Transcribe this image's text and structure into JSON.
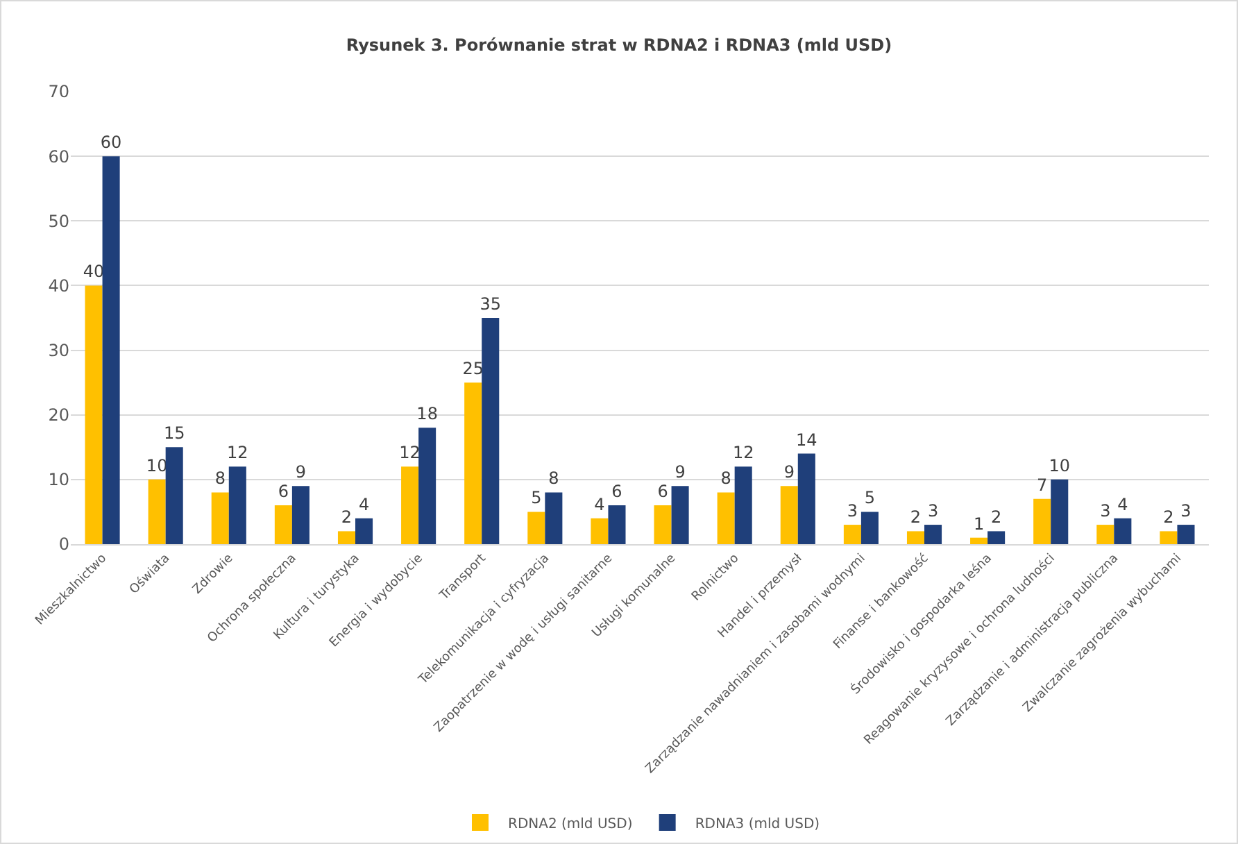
{
  "chart_data": {
    "type": "bar",
    "title": "Rysunek 3. Porównanie strat w RDNA2 i RDNA3 (mld USD)",
    "categories": [
      "Mieszkalnictwo",
      "Oświata",
      "Zdrowie",
      "Ochrona społeczna",
      "Kultura i turystyka",
      "Energia i wydobycie",
      "Transport",
      "Telekomunikacja i cyfryzacja",
      "Zaopatrzenie w wodę i usługi sanitarne",
      "Usługi komunalne",
      "Rolnictwo",
      "Handel i przemysł",
      "Zarządzanie nawadnianiem i zasobami wodnymi",
      "Finanse i bankowość",
      "Środowisko i gospodarka leśna",
      "Reagowanie kryzysowe i ochrona ludności",
      "Zarządzanie i administracja publiczna",
      "Zwalczanie zagrożenia wybuchami"
    ],
    "series": [
      {
        "name": "RDNA2 (mld USD)",
        "color": "#ffc000",
        "values": [
          40,
          10,
          8,
          6,
          2,
          12,
          25,
          5,
          4,
          6,
          8,
          9,
          3,
          2,
          1,
          7,
          3,
          2
        ]
      },
      {
        "name": "RDNA3 (mld USD)",
        "color": "#1f3f7a",
        "values": [
          60,
          15,
          12,
          9,
          4,
          18,
          35,
          8,
          6,
          9,
          12,
          14,
          5,
          3,
          2,
          10,
          4,
          3
        ]
      }
    ],
    "ylim": [
      0,
      70
    ],
    "yticks": [
      0,
      10,
      20,
      30,
      40,
      50,
      60,
      70
    ],
    "grid": "y",
    "legend": "bottom",
    "data_labels": true
  }
}
